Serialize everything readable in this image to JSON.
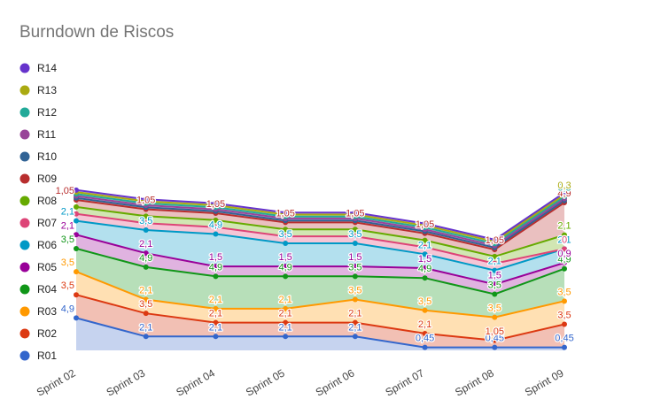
{
  "chart_data": {
    "type": "area",
    "stacked": true,
    "title": "Burndown de Riscos",
    "xlabel": "",
    "ylabel": "",
    "ylim": [
      0,
      43.5
    ],
    "grid": false,
    "legend_position": "left",
    "categories": [
      "Sprint 02",
      "Sprint 03",
      "Sprint 04",
      "Sprint 05",
      "Sprint 06",
      "Sprint 07",
      "Sprint 08",
      "Sprint 09"
    ],
    "series": [
      {
        "name": "R01",
        "color": "#3366cc",
        "fill": "#c6d3ef",
        "values": [
          4.9,
          2.1,
          2.1,
          2.1,
          2.1,
          0.45,
          0.45,
          0.45
        ],
        "labels": [
          "4,9",
          "2,1",
          "2,1",
          "2,1",
          "2,1",
          "0,45",
          "0,45",
          "0,45"
        ]
      },
      {
        "name": "R02",
        "color": "#dc3912",
        "fill": "#f2c0b4",
        "values": [
          3.5,
          3.5,
          2.1,
          2.1,
          2.1,
          2.1,
          1.05,
          3.5
        ],
        "labels": [
          "3,5",
          "3,5",
          "2,1",
          "2,1",
          "2,1",
          "2,1",
          "1,05",
          "3,5"
        ]
      },
      {
        "name": "R03",
        "color": "#ff9900",
        "fill": "#ffe0b3",
        "values": [
          3.5,
          2.1,
          2.1,
          2.1,
          3.5,
          3.5,
          3.5,
          3.5
        ],
        "labels": [
          "3,5",
          "2,1",
          "2,1",
          "2,1",
          "3,5",
          "3,5",
          "3,5",
          "3,5"
        ]
      },
      {
        "name": "R04",
        "color": "#109618",
        "fill": "#b7dfb9",
        "values": [
          3.5,
          4.9,
          4.9,
          4.9,
          3.5,
          4.9,
          3.5,
          4.9
        ],
        "labels": [
          "3,5",
          "4,9",
          "4,9",
          "4,9",
          "3,5",
          "4,9",
          "3,5",
          "4,9"
        ]
      },
      {
        "name": "R05",
        "color": "#990099",
        "fill": "#e0b3e0",
        "values": [
          2.1,
          2.1,
          1.5,
          1.5,
          1.5,
          1.5,
          1.5,
          0.9
        ],
        "labels": [
          "2,1",
          "2,1",
          "1,5",
          "1,5",
          "1,5",
          "1,5",
          "1,5",
          "0,9"
        ]
      },
      {
        "name": "R06",
        "color": "#0099c6",
        "fill": "#b3e0ee",
        "values": [
          2.1,
          3.5,
          4.9,
          3.5,
          3.5,
          2.1,
          2.1,
          2.1
        ],
        "labels": [
          "2,1",
          "3,5",
          "4,9",
          "3,5",
          "3,5",
          "2,1",
          "2,1",
          "2,1"
        ]
      },
      {
        "name": "R07",
        "color": "#dd4477",
        "fill": "#f5c6d6",
        "values": [
          1.05,
          1.05,
          1.05,
          1.05,
          1.05,
          1.05,
          1.05,
          0
        ],
        "labels": [
          "",
          "",
          "",
          "",
          "",
          "",
          "",
          "0"
        ]
      },
      {
        "name": "R08",
        "color": "#66aa00",
        "fill": "#d1e6b3",
        "values": [
          1.05,
          1.05,
          1.05,
          1.05,
          1.05,
          1.05,
          1.05,
          2.1
        ],
        "labels": [
          "",
          "",
          "",
          "",
          "",
          "",
          "",
          "2,1"
        ]
      },
      {
        "name": "R09",
        "color": "#b82e2e",
        "fill": "#eac0c0",
        "values": [
          1.05,
          1.05,
          1.05,
          1.05,
          1.05,
          1.05,
          1.05,
          4.9
        ],
        "labels": [
          "1,05",
          "1,05",
          "1,05",
          "1,05",
          "1,05",
          "1,05",
          "1,05",
          "4,9"
        ]
      },
      {
        "name": "R10",
        "color": "#316395",
        "fill": "#c1d0df",
        "values": [
          0.3,
          0.3,
          0.3,
          0.3,
          0.3,
          0.3,
          0.3,
          0.3
        ],
        "labels": [
          "",
          "",
          "",
          "",
          "",
          "",
          "",
          ""
        ]
      },
      {
        "name": "R11",
        "color": "#994499",
        "fill": "#e0c6e0",
        "values": [
          0.3,
          0.3,
          0.3,
          0.3,
          0.3,
          0.3,
          0.3,
          0.3
        ],
        "labels": [
          "",
          "",
          "",
          "",
          "",
          "",
          "",
          ""
        ]
      },
      {
        "name": "R12",
        "color": "#22aa99",
        "fill": "#bde6e0",
        "values": [
          0.3,
          0.3,
          0.3,
          0.3,
          0.3,
          0.3,
          0.3,
          0.3
        ],
        "labels": [
          "",
          "",
          "",
          "",
          "",
          "",
          "",
          "0,3"
        ]
      },
      {
        "name": "R13",
        "color": "#aaaa11",
        "fill": "#e6e6b8",
        "values": [
          0.3,
          0.3,
          0.3,
          0.3,
          0.3,
          0.3,
          0.3,
          0.3
        ],
        "labels": [
          "",
          "",
          "",
          "",
          "",
          "",
          "",
          "0,3"
        ]
      },
      {
        "name": "R14",
        "color": "#6633cc",
        "fill": "#d1c2f0",
        "values": [
          0.3,
          0.3,
          0.3,
          0.3,
          0.3,
          0.3,
          0.3,
          0.3
        ],
        "labels": [
          "",
          "",
          "",
          "",
          "",
          "",
          "",
          ""
        ]
      }
    ]
  }
}
